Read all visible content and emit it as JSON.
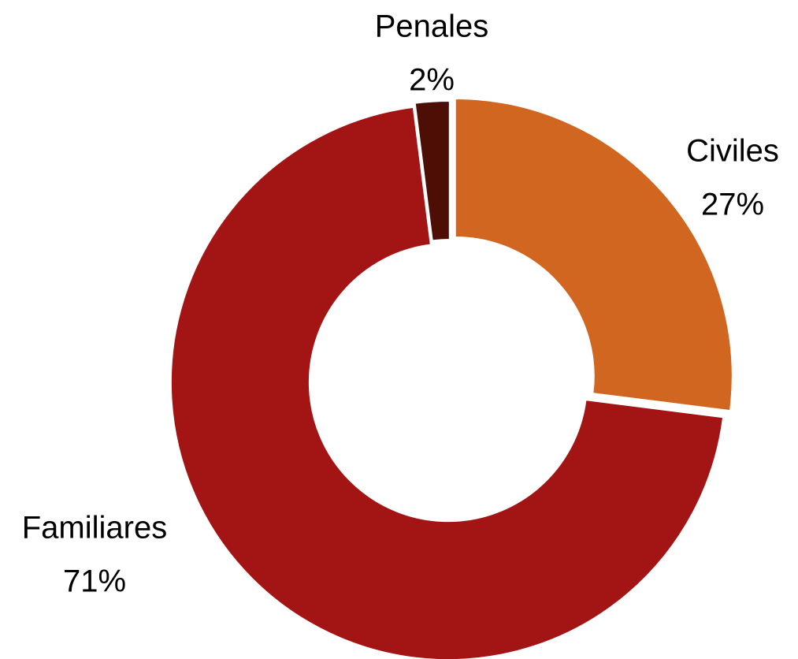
{
  "chart_data": {
    "type": "donut",
    "categories": [
      "Civiles",
      "Familiares",
      "Penales"
    ],
    "values": [
      27,
      71,
      2
    ],
    "value_labels": [
      "27%",
      "71%",
      "2%"
    ],
    "colors": [
      "#d0661f",
      "#a31515",
      "#4d0f05"
    ]
  }
}
